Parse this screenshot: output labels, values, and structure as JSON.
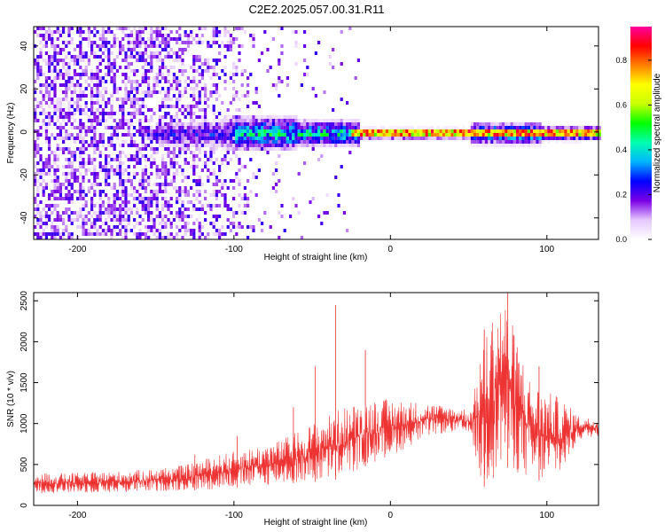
{
  "title": "C2E2.2025.057.00.31.R11",
  "chart_data": [
    {
      "type": "heatmap",
      "name": "spectrogram",
      "xlabel": "Height of straight line (km)",
      "ylabel": "Frequency (Hz)",
      "xlim": [
        -228,
        133
      ],
      "ylim": [
        -50,
        49
      ],
      "xticks": [
        -200,
        -100,
        0,
        100
      ],
      "xtick_labels": [
        "-200",
        "-100",
        "0",
        "100"
      ],
      "yticks": [
        -40,
        -20,
        0,
        20,
        40
      ],
      "ytick_labels": [
        "-40",
        "-20",
        "0",
        "20",
        "40"
      ],
      "colorbar": {
        "label": "Normalized spectral amplitude",
        "range": [
          0,
          0.95
        ],
        "ticks": [
          0,
          0.2,
          0.4,
          0.6,
          0.8
        ],
        "tick_labels": [
          "0.0",
          "0.2",
          "0.4",
          "0.6",
          "0.8"
        ],
        "colormap": [
          "#ffffff",
          "#e6c8ff",
          "#7a00e6",
          "#0000ff",
          "#00b4ff",
          "#00ffb0",
          "#00ff00",
          "#c8ff00",
          "#ffff00",
          "#ff8000",
          "#ff0000",
          "#ff00a0"
        ]
      },
      "signal_line": {
        "frequency": 0,
        "x_from": -25,
        "x_to": 133,
        "peak_amplitude": 0.9
      },
      "grid": false
    },
    {
      "type": "line",
      "name": "snr",
      "xlabel": "Height of straight line (km)",
      "ylabel": "SNR (10 * v/v)",
      "xlim": [
        -228,
        133
      ],
      "ylim": [
        0,
        2600
      ],
      "xticks": [
        -200,
        -100,
        0,
        100
      ],
      "xtick_labels": [
        "-200",
        "-100",
        "0",
        "100"
      ],
      "yticks": [
        0,
        500,
        1000,
        1500,
        2000,
        2500
      ],
      "ytick_labels": [
        "0",
        "500",
        "1000",
        "1500",
        "2000",
        "2500"
      ],
      "color": "#ee3333",
      "envelope": {
        "x": [
          -228,
          -200,
          -170,
          -150,
          -130,
          -110,
          -90,
          -70,
          -55,
          -40,
          -30,
          -20,
          -10,
          0,
          10,
          25,
          40,
          52,
          58,
          65,
          72,
          80,
          90,
          100,
          110,
          120,
          133
        ],
        "low": [
          150,
          150,
          160,
          170,
          180,
          200,
          230,
          260,
          280,
          300,
          330,
          450,
          520,
          600,
          700,
          850,
          900,
          850,
          200,
          300,
          500,
          400,
          300,
          300,
          400,
          800,
          850
        ],
        "high": [
          390,
          400,
          420,
          450,
          500,
          620,
          700,
          800,
          950,
          1100,
          1200,
          1250,
          1300,
          1300,
          1280,
          1250,
          1200,
          1180,
          2000,
          2350,
          2600,
          2100,
          1500,
          1400,
          1300,
          1100,
          1050
        ]
      },
      "spikes": [
        {
          "x": -125,
          "y": 620
        },
        {
          "x": -98,
          "y": 850
        },
        {
          "x": -62,
          "y": 1200
        },
        {
          "x": -48,
          "y": 1700
        },
        {
          "x": -35,
          "y": 2450
        },
        {
          "x": -16,
          "y": 1900
        },
        {
          "x": 60,
          "y": 2150
        },
        {
          "x": 75,
          "y": 2600
        },
        {
          "x": 95,
          "y": 1700
        }
      ],
      "grid": false
    }
  ]
}
